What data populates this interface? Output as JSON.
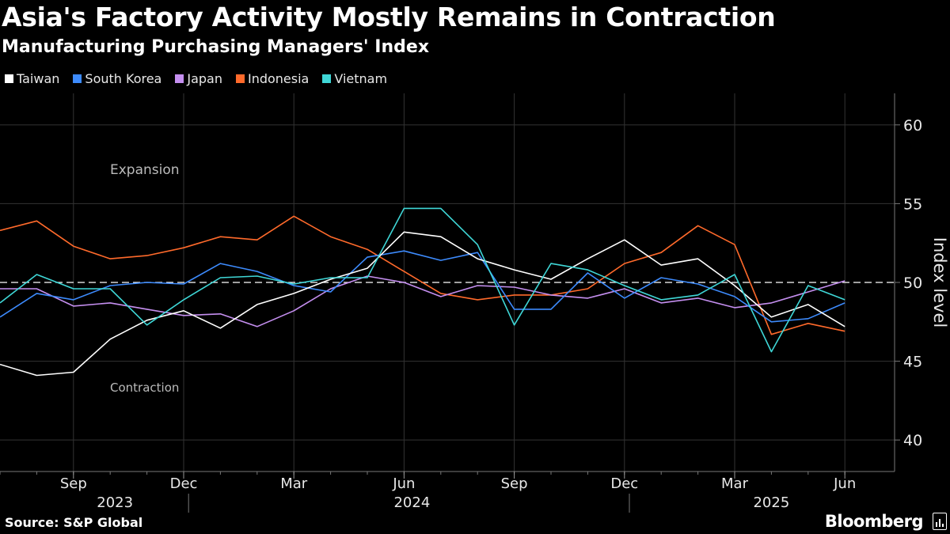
{
  "header": {
    "title": "Asia's Factory Activity Mostly Remains in Contraction",
    "subtitle": "Manufacturing Purchasing Managers' Index"
  },
  "footer": {
    "source": "Source: S&P Global",
    "brand": "Bloomberg"
  },
  "chart_data": {
    "type": "line",
    "title": "Asia's Factory Activity Mostly Remains in Contraction",
    "subtitle": "Manufacturing Purchasing Managers' Index",
    "ylabel": "Index level",
    "xlabel": "",
    "ylim": [
      38,
      62
    ],
    "yticks": [
      40,
      45,
      50,
      55,
      60
    ],
    "reference_line": 50,
    "annotations": [
      "Expansion",
      "Contraction"
    ],
    "legend_position": "top-left",
    "x": [
      "2023-07",
      "2023-08",
      "2023-09",
      "2023-10",
      "2023-11",
      "2023-12",
      "2024-01",
      "2024-02",
      "2024-03",
      "2024-04",
      "2024-05",
      "2024-06",
      "2024-07",
      "2024-08",
      "2024-09",
      "2024-10",
      "2024-11",
      "2024-12",
      "2025-01",
      "2025-02",
      "2025-03",
      "2025-04",
      "2025-05",
      "2025-06"
    ],
    "x_tick_labels": [
      {
        "label": "Sep",
        "x": "2023-09"
      },
      {
        "label": "Dec",
        "x": "2023-12"
      },
      {
        "label": "Mar",
        "x": "2024-03"
      },
      {
        "label": "Jun",
        "x": "2024-06"
      },
      {
        "label": "Sep",
        "x": "2024-09"
      },
      {
        "label": "Dec",
        "x": "2024-12"
      },
      {
        "label": "Mar",
        "x": "2025-03"
      },
      {
        "label": "Jun",
        "x": "2025-06"
      }
    ],
    "year_labels": [
      {
        "label": "2023",
        "x": "2023-10"
      },
      {
        "label": "2024",
        "x": "2024-06"
      },
      {
        "label": "2025",
        "x": "2025-04"
      }
    ],
    "series": [
      {
        "name": "Taiwan",
        "color": "#ffffff",
        "values": [
          44.8,
          44.1,
          44.3,
          46.4,
          47.6,
          48.2,
          47.1,
          48.6,
          49.3,
          50.2,
          50.9,
          53.2,
          52.9,
          51.5,
          50.8,
          50.2,
          51.5,
          52.7,
          51.1,
          51.5,
          49.8,
          47.8,
          48.6,
          47.2
        ]
      },
      {
        "name": "South Korea",
        "color": "#3d8bfd",
        "values": [
          47.8,
          49.3,
          48.9,
          49.8,
          50.0,
          49.9,
          51.2,
          50.7,
          49.8,
          49.4,
          51.6,
          52.0,
          51.4,
          51.9,
          48.3,
          48.3,
          50.6,
          49.0,
          50.3,
          49.9,
          49.1,
          47.5,
          47.7,
          48.7
        ]
      },
      {
        "name": "Japan",
        "color": "#c58ff0",
        "values": [
          49.6,
          49.6,
          48.5,
          48.7,
          48.3,
          47.9,
          48.0,
          47.2,
          48.2,
          49.6,
          50.4,
          50.0,
          49.1,
          49.8,
          49.7,
          49.2,
          49.0,
          49.6,
          48.7,
          49.0,
          48.4,
          48.7,
          49.4,
          50.1
        ]
      },
      {
        "name": "Indonesia",
        "color": "#ff6a2b",
        "values": [
          53.3,
          53.9,
          52.3,
          51.5,
          51.7,
          52.2,
          52.9,
          52.7,
          54.2,
          52.9,
          52.1,
          50.7,
          49.3,
          48.9,
          49.2,
          49.2,
          49.6,
          51.2,
          51.9,
          53.6,
          52.4,
          46.7,
          47.4,
          46.9
        ]
      },
      {
        "name": "Vietnam",
        "color": "#3fd7d7",
        "values": [
          48.7,
          50.5,
          49.6,
          49.6,
          47.3,
          48.9,
          50.3,
          50.4,
          49.9,
          50.3,
          50.3,
          54.7,
          54.7,
          52.4,
          47.3,
          51.2,
          50.8,
          49.8,
          48.9,
          49.2,
          50.5,
          45.6,
          49.8,
          48.9
        ]
      }
    ]
  }
}
